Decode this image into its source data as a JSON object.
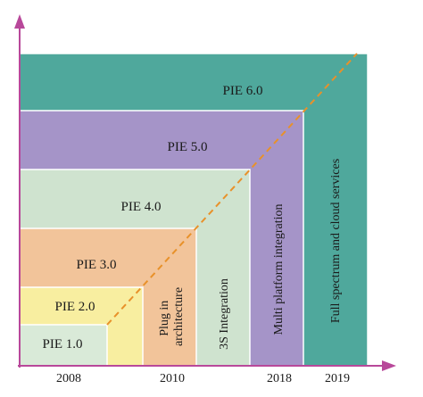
{
  "colors": {
    "axis": "#b8489a",
    "dashed_line": "#e8912a",
    "pie6": "#4fa89c",
    "pie5": "#a594c8",
    "pie4": "#cfe3cf",
    "pie3": "#f2c49a",
    "pie2": "#f8eea0",
    "pie1": "#d9ead8"
  },
  "versions": [
    {
      "label": "PIE 6.0"
    },
    {
      "label": "PIE 5.0"
    },
    {
      "label": "PIE 4.0"
    },
    {
      "label": "PIE 3.0"
    },
    {
      "label": "PIE 2.0"
    },
    {
      "label": "PIE 1.0"
    }
  ],
  "features": [
    {
      "lines": [
        "Plug in",
        "architecture"
      ]
    },
    {
      "lines": [
        "3S Integration"
      ]
    },
    {
      "lines": [
        "Multi platform integration"
      ]
    },
    {
      "lines": [
        "Full spectrum and cloud services"
      ]
    }
  ],
  "years": [
    "2008",
    "2010",
    "2018",
    "2019"
  ]
}
